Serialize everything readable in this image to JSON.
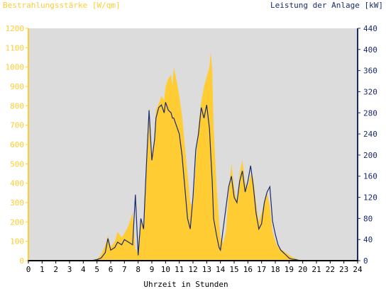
{
  "chart_data": {
    "type": "area",
    "left_axis_title": "Bestrahlungsstärke [W/qm]",
    "right_axis_title": "Leistung der Anlage [kW]",
    "xlabel": "Uhrzeit in Stunden",
    "xlim": [
      0,
      24
    ],
    "x_ticks": [
      0,
      1,
      2,
      3,
      4,
      5,
      6,
      7,
      8,
      9,
      10,
      11,
      12,
      13,
      14,
      15,
      16,
      17,
      18,
      19,
      20,
      21,
      22,
      23,
      24
    ],
    "y_left_lim": [
      0,
      1200
    ],
    "y_left_ticks": [
      0,
      100,
      200,
      300,
      400,
      500,
      600,
      700,
      800,
      900,
      1000,
      1100,
      1200
    ],
    "y_right_lim": [
      0,
      440
    ],
    "y_right_ticks": [
      0,
      40,
      80,
      120,
      160,
      200,
      240,
      280,
      320,
      360,
      400,
      440
    ],
    "grid": false,
    "colors": {
      "irradiance_fill": "#ffcc33",
      "power_line": "#1a2a6e",
      "plot_background": "#dcdcdc",
      "left_axis": "#ffcc33",
      "right_axis": "#1a2a6e",
      "x_axis": "#000000"
    },
    "series": [
      {
        "axis": "left",
        "style": "area",
        "x": [
          0,
          4.6,
          5.0,
          5.3,
          5.6,
          5.8,
          6.0,
          6.3,
          6.5,
          6.8,
          7.0,
          7.3,
          7.6,
          7.8,
          8.0,
          8.2,
          8.4,
          8.6,
          8.8,
          9.0,
          9.2,
          9.3,
          9.5,
          9.7,
          9.9,
          10.0,
          10.2,
          10.4,
          10.5,
          10.6,
          10.8,
          11.0,
          11.2,
          11.4,
          11.6,
          11.8,
          12.0,
          12.2,
          12.4,
          12.6,
          12.8,
          13.0,
          13.2,
          13.3,
          13.4,
          13.5,
          13.7,
          13.9,
          14.0,
          14.2,
          14.4,
          14.6,
          14.8,
          15.0,
          15.2,
          15.4,
          15.6,
          15.8,
          16.0,
          16.2,
          16.4,
          16.6,
          16.8,
          17.0,
          17.2,
          17.4,
          17.6,
          17.8,
          18.0,
          18.2,
          18.4,
          18.6,
          18.8,
          19.0,
          19.2,
          19.5,
          19.8,
          20.0,
          24
        ],
        "values": [
          0,
          0,
          10,
          30,
          80,
          130,
          70,
          100,
          150,
          120,
          140,
          180,
          250,
          60,
          40,
          200,
          180,
          450,
          780,
          500,
          650,
          780,
          810,
          850,
          830,
          900,
          940,
          960,
          900,
          1000,
          930,
          850,
          750,
          600,
          450,
          300,
          280,
          500,
          700,
          820,
          900,
          950,
          1000,
          1080,
          980,
          700,
          400,
          200,
          120,
          90,
          150,
          350,
          500,
          380,
          300,
          450,
          520,
          400,
          380,
          450,
          420,
          300,
          200,
          250,
          300,
          350,
          280,
          150,
          100,
          70,
          60,
          50,
          40,
          30,
          20,
          10,
          5,
          0,
          0
        ]
      },
      {
        "axis": "right",
        "style": "line",
        "x": [
          0,
          4.6,
          5.0,
          5.3,
          5.6,
          5.8,
          6.0,
          6.3,
          6.5,
          6.8,
          7.0,
          7.3,
          7.6,
          7.8,
          8.0,
          8.2,
          8.4,
          8.6,
          8.8,
          9.0,
          9.2,
          9.3,
          9.5,
          9.7,
          9.9,
          10.0,
          10.2,
          10.4,
          10.5,
          10.6,
          10.8,
          11.0,
          11.2,
          11.4,
          11.6,
          11.8,
          12.0,
          12.2,
          12.4,
          12.6,
          12.8,
          13.0,
          13.2,
          13.3,
          13.4,
          13.5,
          13.7,
          13.9,
          14.0,
          14.2,
          14.4,
          14.6,
          14.8,
          15.0,
          15.2,
          15.4,
          15.6,
          15.8,
          16.0,
          16.2,
          16.4,
          16.6,
          16.8,
          17.0,
          17.2,
          17.4,
          17.6,
          17.8,
          18.0,
          18.2,
          18.4,
          18.6,
          18.8,
          19.0,
          19.2,
          19.5,
          19.8,
          20.0,
          24
        ],
        "values": [
          0,
          0,
          2,
          5,
          15,
          42,
          20,
          25,
          35,
          30,
          40,
          35,
          30,
          125,
          10,
          80,
          60,
          180,
          285,
          190,
          230,
          270,
          290,
          295,
          280,
          300,
          285,
          280,
          270,
          270,
          255,
          240,
          200,
          140,
          80,
          60,
          120,
          210,
          240,
          290,
          270,
          295,
          250,
          200,
          150,
          80,
          50,
          25,
          20,
          60,
          100,
          140,
          160,
          120,
          110,
          150,
          170,
          130,
          150,
          180,
          140,
          90,
          60,
          70,
          110,
          130,
          140,
          75,
          50,
          30,
          20,
          15,
          10,
          5,
          3,
          2,
          0,
          0,
          0
        ]
      }
    ]
  }
}
